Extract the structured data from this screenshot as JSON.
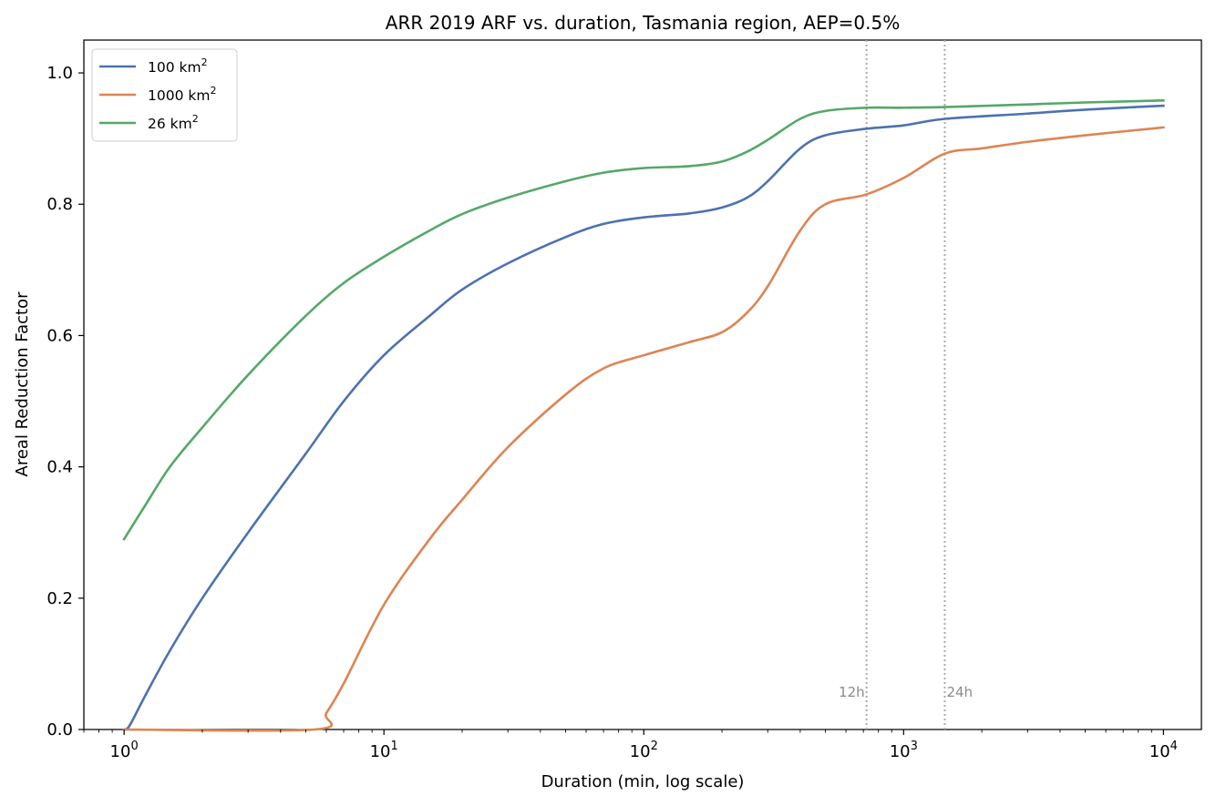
{
  "chart_data": {
    "type": "line",
    "title": "ARR 2019 ARF vs. duration, Tasmania region, AEP=0.5%",
    "xlabel": "Duration (min, log scale)",
    "ylabel": "Areal Reduction Factor",
    "xscale": "log",
    "xlim": [
      0.7,
      14000
    ],
    "ylim": [
      0,
      1.05
    ],
    "x_ticks": [
      {
        "value": 1,
        "base": "10",
        "exp": "0"
      },
      {
        "value": 10,
        "base": "10",
        "exp": "1"
      },
      {
        "value": 100,
        "base": "10",
        "exp": "2"
      },
      {
        "value": 1000,
        "base": "10",
        "exp": "3"
      },
      {
        "value": 10000,
        "base": "10",
        "exp": "4"
      }
    ],
    "y_ticks": [
      {
        "value": 0.0,
        "label": "0.0"
      },
      {
        "value": 0.2,
        "label": "0.2"
      },
      {
        "value": 0.4,
        "label": "0.4"
      },
      {
        "value": 0.6,
        "label": "0.6"
      },
      {
        "value": 0.8,
        "label": "0.8"
      },
      {
        "value": 1.0,
        "label": "1.0"
      }
    ],
    "grid": false,
    "legend_position": "top-left",
    "reference_lines": [
      {
        "x": 720,
        "label": "12h",
        "label_side": "left"
      },
      {
        "x": 1440,
        "label": "24h",
        "label_side": "right"
      }
    ],
    "series": [
      {
        "name": "100 km",
        "name_sup": "2",
        "color": "#4c72b0",
        "points": [
          [
            1,
            0
          ],
          [
            1.05,
            0.006
          ],
          [
            1.2,
            0.05
          ],
          [
            1.5,
            0.12
          ],
          [
            2,
            0.2
          ],
          [
            3,
            0.3
          ],
          [
            5,
            0.42
          ],
          [
            7,
            0.5
          ],
          [
            10,
            0.57
          ],
          [
            15,
            0.63
          ],
          [
            20,
            0.67
          ],
          [
            30,
            0.71
          ],
          [
            50,
            0.75
          ],
          [
            70,
            0.77
          ],
          [
            100,
            0.78
          ],
          [
            150,
            0.786
          ],
          [
            200,
            0.795
          ],
          [
            250,
            0.81
          ],
          [
            300,
            0.835
          ],
          [
            400,
            0.885
          ],
          [
            500,
            0.905
          ],
          [
            720,
            0.915
          ],
          [
            1000,
            0.92
          ],
          [
            1440,
            0.93
          ],
          [
            3000,
            0.938
          ],
          [
            5000,
            0.944
          ],
          [
            10000,
            0.95
          ]
        ]
      },
      {
        "name": "1000 km",
        "name_sup": "2",
        "color": "#dd8452",
        "points": [
          [
            1,
            0
          ],
          [
            5.4,
            0
          ],
          [
            6,
            0.025
          ],
          [
            7,
            0.07
          ],
          [
            10,
            0.19
          ],
          [
            15,
            0.29
          ],
          [
            20,
            0.35
          ],
          [
            30,
            0.43
          ],
          [
            50,
            0.51
          ],
          [
            70,
            0.55
          ],
          [
            100,
            0.57
          ],
          [
            150,
            0.59
          ],
          [
            200,
            0.605
          ],
          [
            250,
            0.635
          ],
          [
            300,
            0.675
          ],
          [
            400,
            0.76
          ],
          [
            500,
            0.8
          ],
          [
            720,
            0.815
          ],
          [
            1000,
            0.84
          ],
          [
            1440,
            0.877
          ],
          [
            2000,
            0.885
          ],
          [
            3000,
            0.895
          ],
          [
            5000,
            0.905
          ],
          [
            10000,
            0.917
          ]
        ]
      },
      {
        "name": "26 km",
        "name_sup": "2",
        "color": "#55a868",
        "points": [
          [
            1,
            0.29
          ],
          [
            1.2,
            0.34
          ],
          [
            1.5,
            0.4
          ],
          [
            2,
            0.46
          ],
          [
            3,
            0.54
          ],
          [
            5,
            0.63
          ],
          [
            7,
            0.68
          ],
          [
            10,
            0.72
          ],
          [
            15,
            0.76
          ],
          [
            20,
            0.785
          ],
          [
            30,
            0.81
          ],
          [
            50,
            0.835
          ],
          [
            70,
            0.848
          ],
          [
            100,
            0.855
          ],
          [
            150,
            0.858
          ],
          [
            200,
            0.865
          ],
          [
            250,
            0.88
          ],
          [
            300,
            0.898
          ],
          [
            400,
            0.93
          ],
          [
            500,
            0.942
          ],
          [
            720,
            0.947
          ],
          [
            1000,
            0.947
          ],
          [
            1440,
            0.948
          ],
          [
            3000,
            0.952
          ],
          [
            5000,
            0.955
          ],
          [
            10000,
            0.958
          ]
        ]
      }
    ]
  }
}
